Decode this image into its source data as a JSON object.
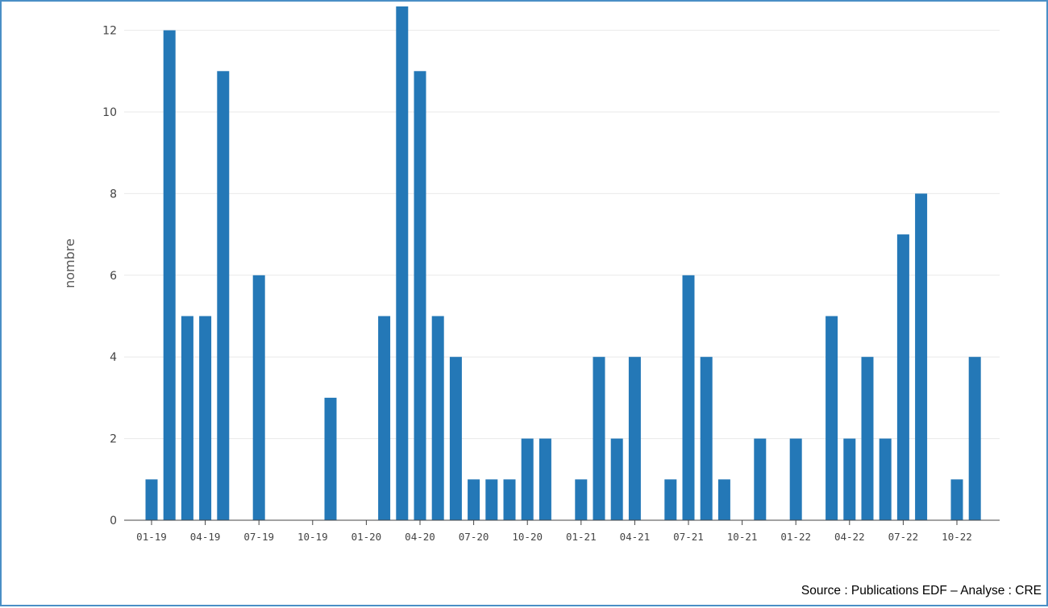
{
  "chart_data": {
    "type": "bar",
    "ylabel": "nombre",
    "xlabel": "",
    "ylim": [
      0,
      12.5
    ],
    "yticks": [
      0,
      2,
      4,
      6,
      8,
      10,
      12
    ],
    "grid": true,
    "bar_color": "#2478b7",
    "categories": [
      "01-19",
      "02-19",
      "03-19",
      "04-19",
      "05-19",
      "06-19",
      "07-19",
      "08-19",
      "09-19",
      "10-19",
      "11-19",
      "12-19",
      "01-20",
      "02-20",
      "03-20",
      "04-20",
      "05-20",
      "06-20",
      "07-20",
      "08-20",
      "09-20",
      "10-20",
      "11-20",
      "12-20",
      "01-21",
      "02-21",
      "03-21",
      "04-21",
      "05-21",
      "06-21",
      "07-21",
      "08-21",
      "09-21",
      "10-21",
      "11-21",
      "12-21",
      "01-22",
      "02-22",
      "03-22",
      "04-22",
      "05-22",
      "06-22",
      "07-22",
      "08-22",
      "09-22",
      "10-22",
      "11-22",
      "12-22"
    ],
    "values": [
      1,
      12,
      5,
      5,
      11,
      0,
      6,
      0,
      0,
      0,
      3,
      0,
      0,
      5,
      13,
      11,
      5,
      4,
      1,
      1,
      1,
      2,
      2,
      0,
      1,
      4,
      2,
      4,
      0,
      1,
      6,
      4,
      1,
      0,
      2,
      0,
      2,
      0,
      5,
      2,
      4,
      2,
      7,
      8,
      0,
      1,
      4,
      0
    ],
    "xtick_labels": [
      "01-19",
      "04-19",
      "07-19",
      "10-19",
      "01-20",
      "04-20",
      "07-20",
      "10-20",
      "01-21",
      "04-21",
      "07-21",
      "10-21",
      "01-22",
      "04-22",
      "07-22",
      "10-22"
    ]
  },
  "source_text": "Source : Publications EDF – Analyse : CRE"
}
